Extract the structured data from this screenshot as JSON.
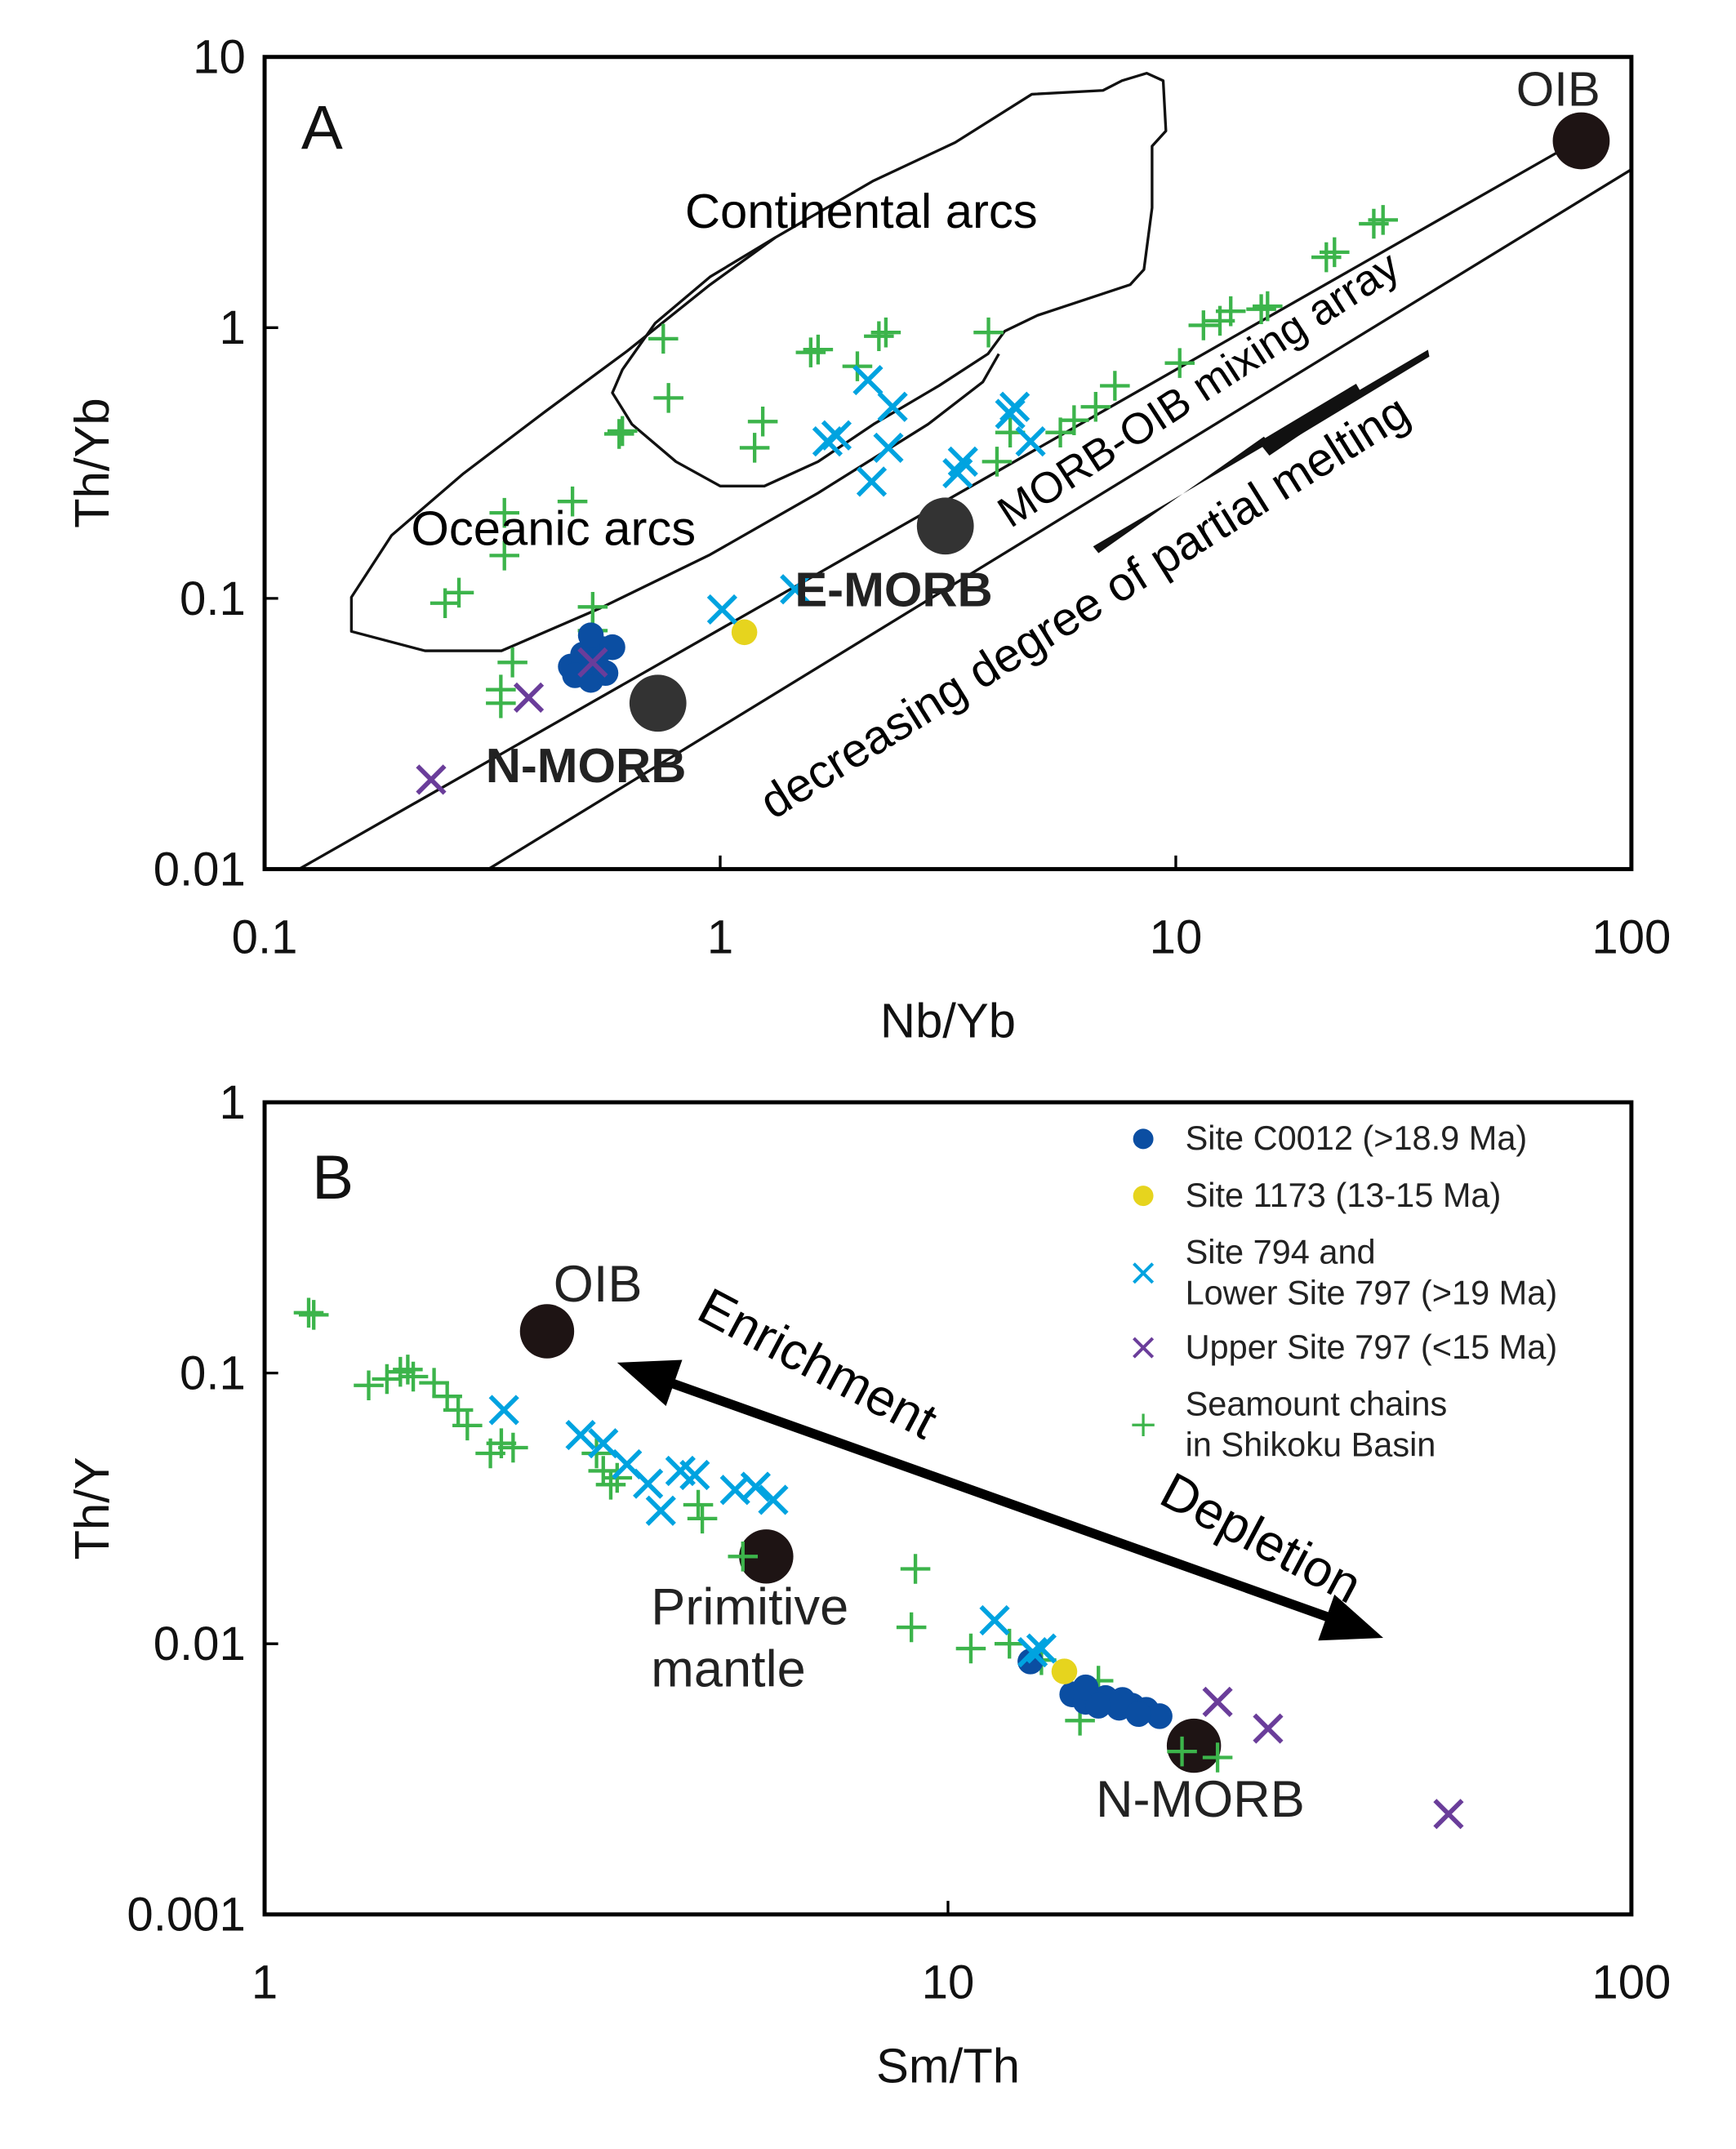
{
  "chart_data": [
    {
      "type": "scatter",
      "panel_label": "A",
      "xlabel": "Nb/Yb",
      "ylabel": "Th/Yb",
      "xscale": "log",
      "yscale": "log",
      "xlim": [
        0.1,
        100
      ],
      "ylim": [
        0.01,
        10
      ],
      "xticks": [
        {
          "value": 0.1,
          "label": "0.1"
        },
        {
          "value": 1,
          "label": "1"
        },
        {
          "value": 10,
          "label": "10"
        },
        {
          "value": 100,
          "label": "100"
        }
      ],
      "yticks": [
        {
          "value": 0.01,
          "label": "0.01"
        },
        {
          "value": 0.1,
          "label": "0.1"
        },
        {
          "value": 1,
          "label": "1"
        },
        {
          "value": 10,
          "label": "10"
        }
      ],
      "grid": false,
      "series": [
        {
          "name": "Seamount chains in Shikoku Basin",
          "marker": "plus",
          "color": "#3cb44b",
          "points": [
            [
              0.249,
              0.096
            ],
            [
              0.267,
              0.105
            ],
            [
              0.336,
              0.207
            ],
            [
              0.336,
              0.144
            ],
            [
              0.35,
              0.058
            ],
            [
              0.33,
              0.046
            ],
            [
              0.33,
              0.041
            ],
            [
              0.474,
              0.228
            ],
            [
              0.525,
              0.093
            ],
            [
              0.525,
              0.076
            ],
            [
              0.6,
              0.405
            ],
            [
              0.61,
              0.415
            ],
            [
              0.75,
              0.91
            ],
            [
              0.77,
              0.55
            ],
            [
              1.19,
              0.36
            ],
            [
              1.24,
              0.45
            ],
            [
              1.58,
              0.81
            ],
            [
              1.64,
              0.83
            ],
            [
              2.0,
              0.72
            ],
            [
              2.23,
              0.93
            ],
            [
              2.31,
              0.96
            ],
            [
              3.88,
              0.96
            ],
            [
              4.05,
              0.32
            ],
            [
              4.33,
              0.41
            ],
            [
              5.58,
              0.41
            ],
            [
              5.98,
              0.455
            ],
            [
              6.67,
              0.51
            ],
            [
              7.35,
              0.61
            ],
            [
              10.2,
              0.74
            ],
            [
              11.5,
              1.02
            ],
            [
              12.5,
              1.06
            ],
            [
              13.2,
              1.15
            ],
            [
              15.4,
              1.17
            ],
            [
              15.9,
              1.2
            ],
            [
              21.4,
              1.82
            ],
            [
              22.3,
              1.9
            ],
            [
              27.2,
              2.42
            ],
            [
              28.5,
              2.5
            ]
          ]
        },
        {
          "name": "Site C0012 (>18.9 Ma)",
          "marker": "circle",
          "color": "#0b4ea2",
          "points": [
            [
              0.47,
              0.056
            ],
            [
              0.5,
              0.055
            ],
            [
              0.52,
              0.05
            ],
            [
              0.5,
              0.062
            ],
            [
              0.55,
              0.065
            ],
            [
              0.52,
              0.073
            ],
            [
              0.58,
              0.066
            ],
            [
              0.53,
              0.058
            ],
            [
              0.48,
              0.052
            ],
            [
              0.56,
              0.053
            ]
          ]
        },
        {
          "name": "Site 1173 (13-15 Ma)",
          "marker": "circle",
          "color": "#e6d41e",
          "points": [
            [
              1.13,
              0.075
            ]
          ]
        },
        {
          "name": "Site 794 and Lower Site 797 (>19 Ma)",
          "marker": "x",
          "color": "#00a3e0",
          "points": [
            [
              1.01,
              0.091
            ],
            [
              1.46,
              0.108
            ],
            [
              1.72,
              0.38
            ],
            [
              1.8,
              0.4
            ],
            [
              2.11,
              0.64
            ],
            [
              2.15,
              0.27
            ],
            [
              2.34,
              0.36
            ],
            [
              2.39,
              0.51
            ],
            [
              3.32,
              0.29
            ],
            [
              3.41,
              0.32
            ],
            [
              4.33,
              0.48
            ],
            [
              4.43,
              0.51
            ],
            [
              4.8,
              0.38
            ]
          ]
        },
        {
          "name": "Upper Site 797 (<15 Ma)",
          "marker": "x",
          "color": "#6a3d9a",
          "points": [
            [
              0.232,
              0.0214
            ],
            [
              0.38,
              0.043
            ],
            [
              0.525,
              0.058
            ]
          ]
        }
      ],
      "references": [
        {
          "name": "N-MORB",
          "x": 0.73,
          "y": 0.041,
          "color": "#333333"
        },
        {
          "name": "E-MORB",
          "x": 3.12,
          "y": 0.185,
          "color": "#333333"
        },
        {
          "name": "OIB",
          "x": 77.6,
          "y": 4.9,
          "color": "#1e1414"
        }
      ],
      "fields": [
        {
          "name": "Continental arcs",
          "closed": true,
          "outline": [
            [
              1.32,
              2.15
            ],
            [
              2.17,
              3.49
            ],
            [
              3.28,
              4.83
            ],
            [
              4.83,
              7.28
            ],
            [
              6.92,
              7.52
            ],
            [
              7.62,
              8.17
            ],
            [
              8.63,
              8.71
            ],
            [
              9.38,
              8.17
            ],
            [
              9.51,
              5.33
            ],
            [
              8.87,
              4.68
            ],
            [
              8.87,
              2.77
            ],
            [
              8.51,
              1.64
            ],
            [
              7.94,
              1.44
            ],
            [
              4.97,
              1.11
            ],
            [
              4.21,
              0.97
            ],
            [
              3.87,
              0.8
            ],
            [
              3.02,
              0.61
            ],
            [
              2.17,
              0.44
            ],
            [
              1.64,
              0.32
            ],
            [
              1.25,
              0.26
            ],
            [
              1.0,
              0.26
            ],
            [
              0.8,
              0.32
            ],
            [
              0.64,
              0.44
            ],
            [
              0.58,
              0.575
            ],
            [
              0.61,
              0.7
            ],
            [
              0.72,
              1.04
            ],
            [
              0.95,
              1.54
            ],
            [
              1.32,
              2.15
            ]
          ]
        },
        {
          "name": "Oceanic arcs",
          "closed": false,
          "outline": [
            [
              1.32,
              2.15
            ],
            [
              0.95,
              1.44
            ],
            [
              0.625,
              0.82
            ],
            [
              0.413,
              0.49
            ],
            [
              0.273,
              0.289
            ],
            [
              0.19,
              0.171
            ],
            [
              0.155,
              0.101
            ],
            [
              0.155,
              0.0755
            ],
            [
              0.225,
              0.064
            ],
            [
              0.331,
              0.064
            ],
            [
              0.545,
              0.092
            ],
            [
              0.95,
              0.145
            ],
            [
              1.64,
              0.245
            ],
            [
              2.86,
              0.44
            ],
            [
              3.77,
              0.63
            ],
            [
              4.09,
              0.8
            ]
          ]
        }
      ],
      "array_lines": [
        {
          "name": "upper",
          "from": [
            0.119,
            0.01
          ],
          "to": [
            86,
            5.5
          ]
        },
        {
          "name": "lower",
          "from": [
            0.31,
            0.01
          ],
          "to": [
            100,
            3.84
          ]
        }
      ],
      "annotations": {
        "mixing_array": "MORB-OIB mixing array",
        "partial_melting": "decreasing degree of partial melting"
      }
    },
    {
      "type": "scatter",
      "panel_label": "B",
      "xlabel": "Sm/Th",
      "ylabel": "Th/Y",
      "xscale": "log",
      "yscale": "log",
      "xlim": [
        1,
        100
      ],
      "ylim": [
        0.001,
        1
      ],
      "xticks": [
        {
          "value": 1,
          "label": "1"
        },
        {
          "value": 10,
          "label": "10"
        },
        {
          "value": 100,
          "label": "100"
        }
      ],
      "yticks": [
        {
          "value": 0.001,
          "label": "0.001"
        },
        {
          "value": 0.01,
          "label": "0.01"
        },
        {
          "value": 0.1,
          "label": "0.1"
        },
        {
          "value": 1,
          "label": "1"
        }
      ],
      "grid": false,
      "legend_position": "top-right",
      "series": [
        {
          "name": "Seamount chains in Shikoku Basin",
          "marker": "plus",
          "color": "#3cb44b",
          "points": [
            [
              1.16,
              0.167
            ],
            [
              1.18,
              0.164
            ],
            [
              1.42,
              0.09
            ],
            [
              1.51,
              0.095
            ],
            [
              1.58,
              0.101
            ],
            [
              1.62,
              0.103
            ],
            [
              1.65,
              0.097
            ],
            [
              1.77,
              0.092
            ],
            [
              1.85,
              0.082
            ],
            [
              1.92,
              0.073
            ],
            [
              1.98,
              0.064
            ],
            [
              2.14,
              0.0505
            ],
            [
              2.22,
              0.055
            ],
            [
              2.31,
              0.053
            ],
            [
              3.06,
              0.0505
            ],
            [
              3.13,
              0.0435
            ],
            [
              3.21,
              0.0387
            ],
            [
              3.28,
              0.041
            ],
            [
              4.31,
              0.0326
            ],
            [
              4.37,
              0.029
            ],
            [
              5.01,
              0.021
            ],
            [
              8.96,
              0.0189
            ],
            [
              8.84,
              0.0115
            ],
            [
              10.8,
              0.0096
            ],
            [
              12.3,
              0.01
            ],
            [
              13.7,
              0.0087
            ],
            [
              15.6,
              0.0052
            ],
            [
              16.6,
              0.0073
            ],
            [
              22.0,
              0.004
            ],
            [
              24.8,
              0.0038
            ]
          ]
        },
        {
          "name": "Site C0012 (>18.9 Ma)",
          "marker": "circle",
          "color": "#0b4ea2",
          "points": [
            [
              13.2,
              0.0086
            ],
            [
              15.2,
              0.0065
            ],
            [
              15.9,
              0.0061
            ],
            [
              17.0,
              0.0063
            ],
            [
              17.8,
              0.0058
            ],
            [
              18.6,
              0.0059
            ],
            [
              19.5,
              0.0057
            ],
            [
              20.4,
              0.0054
            ],
            [
              15.9,
              0.0069
            ],
            [
              16.6,
              0.0059
            ],
            [
              18.0,
              0.0062
            ],
            [
              19.0,
              0.0055
            ]
          ]
        },
        {
          "name": "Site 1173 (13-15 Ma)",
          "marker": "circle",
          "color": "#e6d41e",
          "points": [
            [
              14.8,
              0.0079
            ]
          ]
        },
        {
          "name": "Site 794 and Lower Site 797 (>19 Ma)",
          "marker": "x",
          "color": "#00a3e0",
          "points": [
            [
              2.24,
              0.073
            ],
            [
              2.9,
              0.059
            ],
            [
              3.13,
              0.055
            ],
            [
              3.39,
              0.046
            ],
            [
              3.64,
              0.039
            ],
            [
              3.8,
              0.031
            ],
            [
              4.06,
              0.0435
            ],
            [
              4.26,
              0.042
            ],
            [
              4.88,
              0.037
            ],
            [
              5.23,
              0.038
            ],
            [
              5.55,
              0.034
            ],
            [
              11.7,
              0.0122
            ],
            [
              13.7,
              0.0096
            ],
            [
              13.3,
              0.0093
            ]
          ]
        },
        {
          "name": "Upper Site 797 (<15 Ma)",
          "marker": "x",
          "color": "#6a3d9a",
          "points": [
            [
              24.8,
              0.0061
            ],
            [
              29.4,
              0.00486
            ],
            [
              54.0,
              0.00235
            ]
          ]
        }
      ],
      "references": [
        {
          "name": "OIB",
          "lines": [
            "OIB"
          ],
          "x": 2.59,
          "y": 0.1426,
          "color": "#1e1414"
        },
        {
          "name": "Primitive mantle",
          "lines": [
            "Primitive",
            "mantle"
          ],
          "x": 5.42,
          "y": 0.021,
          "color": "#1e1414"
        },
        {
          "name": "N-MORB",
          "lines": [
            "N-MORB"
          ],
          "x": 22.9,
          "y": 0.0042,
          "color": "#1e1414"
        }
      ],
      "annotations": {
        "enrichment": "Enrichment",
        "depletion": "Depletion"
      },
      "legend": [
        {
          "marker": "circle",
          "color": "#0b4ea2",
          "lines": [
            "Site C0012 (>18.9 Ma)"
          ]
        },
        {
          "marker": "circle",
          "color": "#e6d41e",
          "lines": [
            "Site 1173 (13-15 Ma)"
          ]
        },
        {
          "marker": "x",
          "color": "#00a3e0",
          "lines": [
            "Site 794 and",
            "Lower Site 797 (>19 Ma)"
          ]
        },
        {
          "marker": "x",
          "color": "#6a3d9a",
          "lines": [
            "Upper Site 797 (<15 Ma)"
          ]
        },
        {
          "marker": "plus",
          "color": "#3cb44b",
          "lines": [
            "Seamount chains",
            "in Shikoku Basin"
          ]
        }
      ]
    }
  ]
}
